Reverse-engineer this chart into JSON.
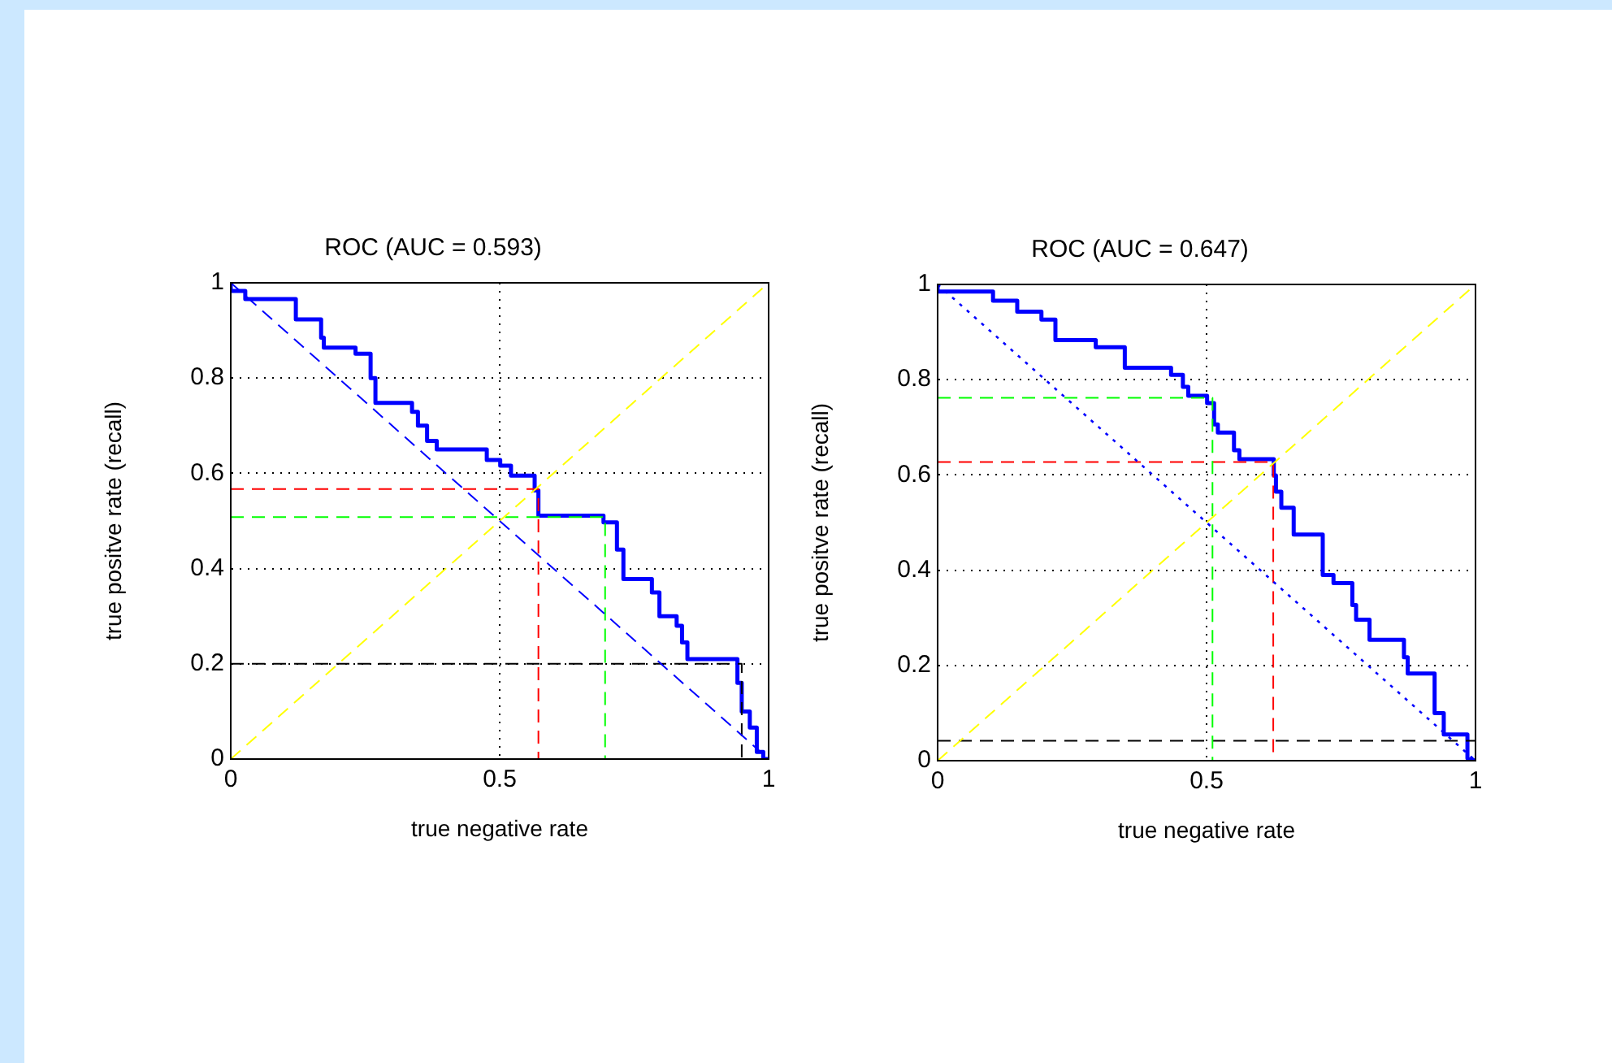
{
  "chart_data": [
    {
      "type": "line",
      "title": "ROC (AUC = 0.593)",
      "xlabel": "true negative rate",
      "ylabel": "true positve rate (recall)",
      "xlim": [
        0,
        1
      ],
      "ylim": [
        0,
        1
      ],
      "xticks": [
        0,
        0.5,
        1
      ],
      "yticks": [
        0,
        0.2,
        0.4,
        0.6,
        0.8,
        1
      ],
      "grid": true,
      "marker": "none",
      "series": [
        {
          "type": "line",
          "color": "#0000ff",
          "line_style": "dashed",
          "x": [
            0,
            1
          ],
          "values": [
            1,
            0
          ]
        },
        {
          "type": "line",
          "color": "#ffff00",
          "line_style": "dashed",
          "x": [
            0,
            1
          ],
          "values": [
            0,
            1
          ]
        },
        {
          "type": "line",
          "color": "#ff0000",
          "line_style": "dashed",
          "x": [
            0,
            0.572,
            0.572
          ],
          "values": [
            0.567,
            0.567,
            0
          ]
        },
        {
          "type": "line",
          "color": "#00ff00",
          "line_style": "dashed",
          "x": [
            0,
            0.696,
            0.696
          ],
          "values": [
            0.508,
            0.508,
            0
          ]
        },
        {
          "type": "line",
          "color": "#000000",
          "line_style": "dashed",
          "x": [
            0,
            0.95,
            0.95
          ],
          "values": [
            0.2,
            0.2,
            0
          ]
        },
        {
          "type": "line",
          "color": "#0000ff",
          "line_style": "solid",
          "x": [
            0,
            0,
            0.027,
            0.027,
            0.121,
            0.121,
            0.168,
            0.168,
            0.173,
            0.173,
            0.232,
            0.232,
            0.26,
            0.26,
            0.269,
            0.269,
            0.337,
            0.337,
            0.348,
            0.348,
            0.365,
            0.365,
            0.383,
            0.383,
            0.476,
            0.476,
            0.501,
            0.501,
            0.521,
            0.521,
            0.565,
            0.565,
            0.572,
            0.572,
            0.693,
            0.693,
            0.718,
            0.718,
            0.73,
            0.73,
            0.783,
            0.783,
            0.797,
            0.797,
            0.829,
            0.829,
            0.839,
            0.839,
            0.849,
            0.849,
            0.942,
            0.942,
            0.95,
            0.95,
            0.965,
            0.965,
            0.978,
            0.978,
            0.99,
            0.99,
            1
          ],
          "values": [
            1,
            0.983,
            0.983,
            0.966,
            0.966,
            0.923,
            0.923,
            0.885,
            0.885,
            0.864,
            0.864,
            0.851,
            0.851,
            0.8,
            0.8,
            0.748,
            0.748,
            0.729,
            0.729,
            0.7,
            0.7,
            0.668,
            0.668,
            0.65,
            0.65,
            0.628,
            0.628,
            0.616,
            0.616,
            0.595,
            0.595,
            0.564,
            0.564,
            0.511,
            0.511,
            0.497,
            0.497,
            0.44,
            0.44,
            0.378,
            0.378,
            0.35,
            0.35,
            0.3,
            0.3,
            0.28,
            0.28,
            0.245,
            0.245,
            0.21,
            0.21,
            0.16,
            0.16,
            0.1,
            0.1,
            0.066,
            0.066,
            0.015,
            0.015,
            0,
            0
          ]
        }
      ]
    },
    {
      "type": "line",
      "title": "ROC (AUC = 0.647)",
      "xlabel": "true negative rate",
      "ylabel": "true positve rate (recall)",
      "xlim": [
        0,
        1
      ],
      "ylim": [
        0,
        1
      ],
      "xticks": [
        0,
        0.5,
        1
      ],
      "yticks": [
        0,
        0.2,
        0.4,
        0.6,
        0.8,
        1
      ],
      "grid": true,
      "marker": "none",
      "series": [
        {
          "type": "line",
          "color": "#0000ff",
          "line_style": "dotted",
          "x": [
            0,
            1
          ],
          "values": [
            1,
            0
          ]
        },
        {
          "type": "line",
          "color": "#ffff00",
          "line_style": "dashed",
          "x": [
            0,
            1
          ],
          "values": [
            0,
            1
          ]
        },
        {
          "type": "line",
          "color": "#00ff00",
          "line_style": "dashed",
          "x": [
            0,
            0.511,
            0.511
          ],
          "values": [
            0.762,
            0.762,
            0
          ]
        },
        {
          "type": "line",
          "color": "#ff0000",
          "line_style": "dashed",
          "x": [
            0,
            0.624,
            0.624
          ],
          "values": [
            0.627,
            0.627,
            0
          ]
        },
        {
          "type": "line",
          "color": "#000000",
          "line_style": "dashed",
          "x": [
            0,
            1
          ],
          "values": [
            0.042,
            0.042
          ]
        },
        {
          "type": "line",
          "color": "#0000ff",
          "line_style": "solid",
          "x": [
            0,
            0,
            0.103,
            0.103,
            0.148,
            0.148,
            0.193,
            0.193,
            0.219,
            0.219,
            0.294,
            0.294,
            0.348,
            0.348,
            0.434,
            0.434,
            0.456,
            0.456,
            0.466,
            0.466,
            0.501,
            0.501,
            0.514,
            0.514,
            0.521,
            0.521,
            0.551,
            0.551,
            0.561,
            0.561,
            0.625,
            0.625,
            0.629,
            0.629,
            0.639,
            0.639,
            0.662,
            0.662,
            0.716,
            0.716,
            0.736,
            0.736,
            0.771,
            0.771,
            0.778,
            0.778,
            0.803,
            0.803,
            0.867,
            0.867,
            0.874,
            0.874,
            0.924,
            0.924,
            0.941,
            0.941,
            0.985,
            0.985,
            1
          ],
          "values": [
            1,
            0.985,
            0.985,
            0.966,
            0.966,
            0.943,
            0.943,
            0.926,
            0.926,
            0.883,
            0.883,
            0.868,
            0.868,
            0.825,
            0.825,
            0.81,
            0.81,
            0.785,
            0.785,
            0.766,
            0.766,
            0.751,
            0.751,
            0.706,
            0.706,
            0.689,
            0.689,
            0.652,
            0.652,
            0.633,
            0.633,
            0.599,
            0.599,
            0.565,
            0.565,
            0.531,
            0.531,
            0.475,
            0.475,
            0.39,
            0.39,
            0.373,
            0.373,
            0.327,
            0.327,
            0.296,
            0.296,
            0.254,
            0.254,
            0.217,
            0.217,
            0.183,
            0.183,
            0.1,
            0.1,
            0.055,
            0.055,
            0.005,
            0
          ]
        }
      ]
    }
  ]
}
